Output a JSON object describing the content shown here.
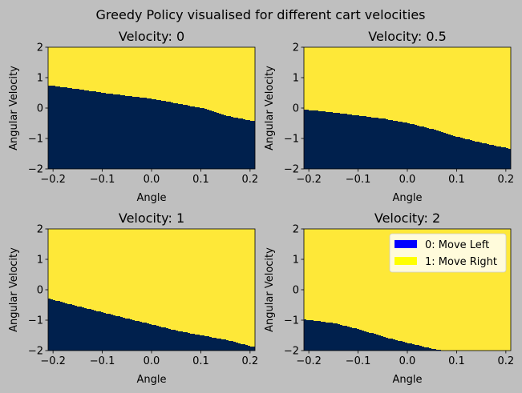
{
  "suptitle": "Greedy Policy visualised for different cart velocities",
  "colors": {
    "background": "#bfbfbf",
    "action_left": "#00204d",
    "action_right": "#fee838",
    "legend_left_swatch": "#0000ff",
    "legend_right_swatch": "#ffff00",
    "legend_bg": "#fffbdb"
  },
  "legend": {
    "entries": [
      {
        "label": "0: Move Left",
        "color": "#0000ff"
      },
      {
        "label": "1: Move Right",
        "color": "#ffff00"
      }
    ],
    "placement": "upper-right",
    "panel": 3
  },
  "chart_data": [
    {
      "type": "heatmap",
      "title": "Velocity: 0",
      "xlabel": "Angle",
      "ylabel": "Angular Velocity",
      "xlim": [
        -0.21,
        0.21
      ],
      "ylim": [
        -2,
        2
      ],
      "xticks": [
        -0.2,
        -0.1,
        0.0,
        0.1,
        0.2
      ],
      "xtick_labels": [
        "−0.2",
        "−0.1",
        "0.0",
        "0.1",
        "0.2"
      ],
      "yticks": [
        -2,
        -1,
        0,
        1,
        2
      ],
      "ytick_labels": [
        "−2",
        "−1",
        "0",
        "1",
        "2"
      ],
      "boundary": {
        "x": [
          -0.21,
          -0.15,
          -0.1,
          -0.05,
          0.0,
          0.05,
          0.1,
          0.15,
          0.21
        ],
        "y": [
          0.75,
          0.62,
          0.5,
          0.4,
          0.3,
          0.15,
          0.0,
          -0.25,
          -0.45
        ]
      },
      "below_action": 0,
      "above_action": 1
    },
    {
      "type": "heatmap",
      "title": "Velocity: 0.5",
      "xlabel": "Angle",
      "ylabel": "Angular Velocity",
      "xlim": [
        -0.21,
        0.21
      ],
      "ylim": [
        -2,
        2
      ],
      "xticks": [
        -0.2,
        -0.1,
        0.0,
        0.1,
        0.2
      ],
      "xtick_labels": [
        "−0.2",
        "−0.1",
        "0.0",
        "0.1",
        "0.2"
      ],
      "yticks": [
        -2,
        -1,
        0,
        1,
        2
      ],
      "ytick_labels": [
        "−2",
        "−1",
        "0",
        "1",
        "2"
      ],
      "boundary": {
        "x": [
          -0.21,
          -0.15,
          -0.1,
          -0.05,
          0.0,
          0.05,
          0.1,
          0.15,
          0.21
        ],
        "y": [
          -0.05,
          -0.15,
          -0.25,
          -0.35,
          -0.5,
          -0.7,
          -0.95,
          -1.15,
          -1.35
        ]
      },
      "below_action": 0,
      "above_action": 1
    },
    {
      "type": "heatmap",
      "title": "Velocity: 1",
      "xlabel": "Angle",
      "ylabel": "Angular Velocity",
      "xlim": [
        -0.21,
        0.21
      ],
      "ylim": [
        -2,
        2
      ],
      "xticks": [
        -0.2,
        -0.1,
        0.0,
        0.1,
        0.2
      ],
      "xtick_labels": [
        "−0.2",
        "−0.1",
        "0.0",
        "0.1",
        "0.2"
      ],
      "yticks": [
        -2,
        -1,
        0,
        1,
        2
      ],
      "ytick_labels": [
        "−2",
        "−1",
        "0",
        "1",
        "2"
      ],
      "boundary": {
        "x": [
          -0.21,
          -0.15,
          -0.1,
          -0.05,
          0.0,
          0.05,
          0.1,
          0.15,
          0.21
        ],
        "y": [
          -0.3,
          -0.55,
          -0.75,
          -0.95,
          -1.15,
          -1.35,
          -1.5,
          -1.65,
          -1.9
        ]
      },
      "below_action": 0,
      "above_action": 1
    },
    {
      "type": "heatmap",
      "title": "Velocity: 2",
      "xlabel": "Angle",
      "ylabel": "Angular Velocity",
      "xlim": [
        -0.21,
        0.21
      ],
      "ylim": [
        -2,
        2
      ],
      "xticks": [
        -0.2,
        -0.1,
        0.0,
        0.1,
        0.2
      ],
      "xtick_labels": [
        "−0.2",
        "−0.1",
        "0.0",
        "0.1",
        "0.2"
      ],
      "yticks": [
        -2,
        -1,
        0,
        1,
        2
      ],
      "ytick_labels": [
        "−2",
        "−1",
        "0",
        "1",
        "2"
      ],
      "boundary": {
        "x": [
          -0.21,
          -0.15,
          -0.1,
          -0.05,
          0.0,
          0.05,
          0.07,
          0.21
        ],
        "y": [
          -0.98,
          -1.1,
          -1.3,
          -1.55,
          -1.75,
          -1.95,
          -2.0,
          -2.0
        ]
      },
      "below_action": 0,
      "above_action": 1
    }
  ]
}
